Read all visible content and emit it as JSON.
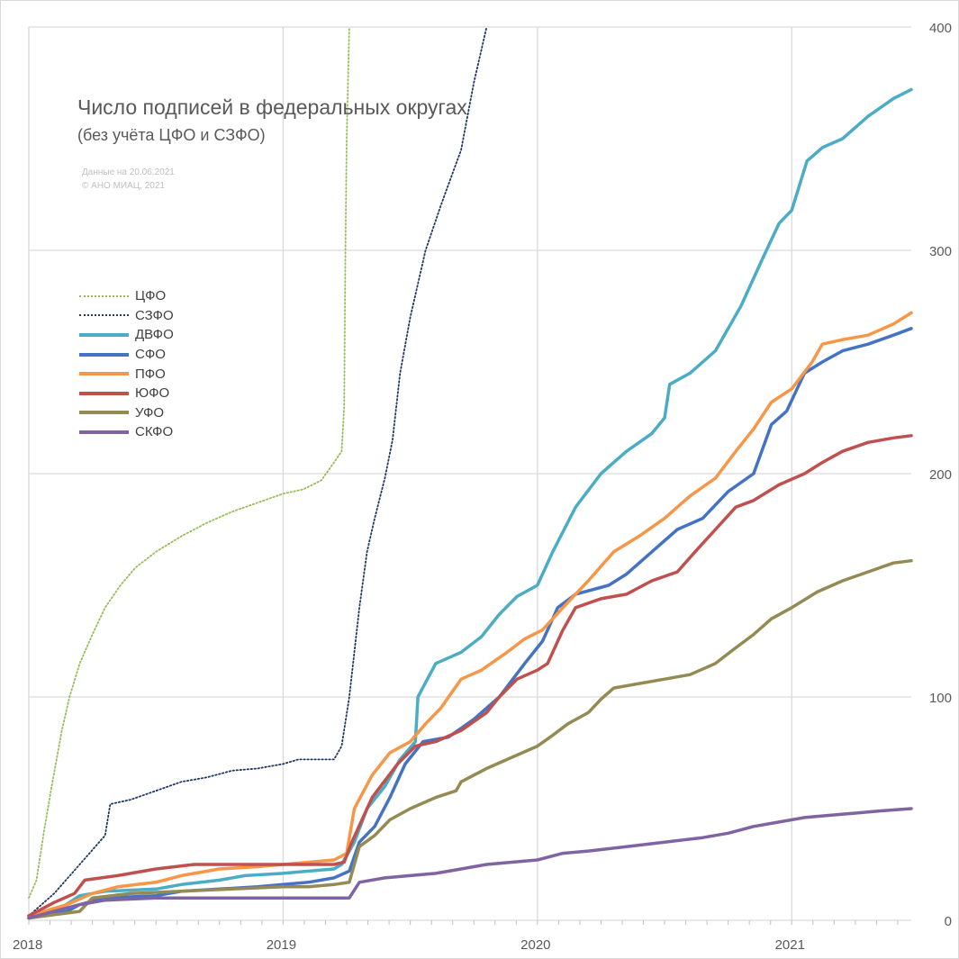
{
  "header": {
    "title": "Число подписей в федеральных округах",
    "subtitle": "(без учёта ЦФО и СЗФО)",
    "note_date": "Данные на 20.06.2021",
    "note_copyright": "© АНО МИАЦ, 2021"
  },
  "chart_data": {
    "type": "line",
    "title": "Число подписей в федеральных округах",
    "subtitle": "(без учёта ЦФО и СЗФО)",
    "xlabel": "",
    "ylabel": "",
    "x_ticks": [
      "2018",
      "2019",
      "2020",
      "2021"
    ],
    "x_tick_values": [
      2018,
      2019,
      2020,
      2021
    ],
    "xlim": [
      2018,
      2021.47
    ],
    "y_ticks": [
      0,
      100,
      200,
      300,
      400
    ],
    "ylim": [
      0,
      400
    ],
    "y_axis_side": "right",
    "grid": true,
    "legend_position": "left",
    "series": [
      {
        "name": "ЦФО",
        "color": "#9bbb59",
        "style": "dotted",
        "points": [
          [
            2018.0,
            10
          ],
          [
            2018.03,
            18
          ],
          [
            2018.06,
            40
          ],
          [
            2018.09,
            60
          ],
          [
            2018.13,
            85
          ],
          [
            2018.16,
            100
          ],
          [
            2018.2,
            115
          ],
          [
            2018.25,
            128
          ],
          [
            2018.3,
            140
          ],
          [
            2018.36,
            150
          ],
          [
            2018.42,
            158
          ],
          [
            2018.5,
            165
          ],
          [
            2018.6,
            172
          ],
          [
            2018.7,
            178
          ],
          [
            2018.8,
            183
          ],
          [
            2018.9,
            187
          ],
          [
            2019.0,
            191
          ],
          [
            2019.08,
            193
          ],
          [
            2019.15,
            197
          ],
          [
            2019.2,
            205
          ],
          [
            2019.23,
            210
          ],
          [
            2019.24,
            230
          ],
          [
            2019.245,
            300
          ],
          [
            2019.25,
            350
          ],
          [
            2019.26,
            400
          ]
        ]
      },
      {
        "name": "СЗФО",
        "color": "#1f3864",
        "style": "dotted",
        "points": [
          [
            2018.0,
            2
          ],
          [
            2018.1,
            12
          ],
          [
            2018.2,
            25
          ],
          [
            2018.3,
            38
          ],
          [
            2018.32,
            52
          ],
          [
            2018.4,
            54
          ],
          [
            2018.5,
            58
          ],
          [
            2018.6,
            62
          ],
          [
            2018.7,
            64
          ],
          [
            2018.8,
            67
          ],
          [
            2018.9,
            68
          ],
          [
            2019.0,
            70
          ],
          [
            2019.06,
            72
          ],
          [
            2019.1,
            72
          ],
          [
            2019.2,
            72
          ],
          [
            2019.23,
            78
          ],
          [
            2019.26,
            100
          ],
          [
            2019.3,
            140
          ],
          [
            2019.33,
            165
          ],
          [
            2019.36,
            180
          ],
          [
            2019.4,
            198
          ],
          [
            2019.43,
            215
          ],
          [
            2019.46,
            245
          ],
          [
            2019.5,
            270
          ],
          [
            2019.56,
            300
          ],
          [
            2019.62,
            320
          ],
          [
            2019.7,
            345
          ],
          [
            2019.75,
            375
          ],
          [
            2019.8,
            400
          ]
        ]
      },
      {
        "name": "ДВФО",
        "color": "#4bacc6",
        "style": "solid",
        "points": [
          [
            2018.0,
            2
          ],
          [
            2018.12,
            5
          ],
          [
            2018.2,
            11
          ],
          [
            2018.3,
            13
          ],
          [
            2018.5,
            14
          ],
          [
            2018.6,
            16
          ],
          [
            2018.75,
            18
          ],
          [
            2018.85,
            20
          ],
          [
            2019.0,
            21
          ],
          [
            2019.1,
            22
          ],
          [
            2019.2,
            23
          ],
          [
            2019.23,
            25
          ],
          [
            2019.28,
            35
          ],
          [
            2019.33,
            50
          ],
          [
            2019.4,
            60
          ],
          [
            2019.46,
            72
          ],
          [
            2019.52,
            80
          ],
          [
            2019.53,
            100
          ],
          [
            2019.6,
            115
          ],
          [
            2019.7,
            120
          ],
          [
            2019.78,
            127
          ],
          [
            2019.85,
            137
          ],
          [
            2019.92,
            145
          ],
          [
            2020.0,
            150
          ],
          [
            2020.06,
            165
          ],
          [
            2020.15,
            185
          ],
          [
            2020.25,
            200
          ],
          [
            2020.35,
            210
          ],
          [
            2020.45,
            218
          ],
          [
            2020.5,
            225
          ],
          [
            2020.52,
            240
          ],
          [
            2020.6,
            245
          ],
          [
            2020.7,
            255
          ],
          [
            2020.8,
            275
          ],
          [
            2020.88,
            295
          ],
          [
            2020.95,
            312
          ],
          [
            2021.0,
            318
          ],
          [
            2021.06,
            340
          ],
          [
            2021.12,
            346
          ],
          [
            2021.2,
            350
          ],
          [
            2021.3,
            360
          ],
          [
            2021.4,
            368
          ],
          [
            2021.47,
            372
          ]
        ]
      },
      {
        "name": "СФО",
        "color": "#4472c4",
        "style": "solid",
        "points": [
          [
            2018.0,
            1
          ],
          [
            2018.15,
            4
          ],
          [
            2018.2,
            7
          ],
          [
            2018.3,
            10
          ],
          [
            2018.5,
            11
          ],
          [
            2018.6,
            13
          ],
          [
            2018.75,
            14
          ],
          [
            2018.9,
            15
          ],
          [
            2019.0,
            16
          ],
          [
            2019.1,
            17
          ],
          [
            2019.2,
            19
          ],
          [
            2019.26,
            22
          ],
          [
            2019.3,
            35
          ],
          [
            2019.36,
            42
          ],
          [
            2019.42,
            55
          ],
          [
            2019.48,
            70
          ],
          [
            2019.55,
            80
          ],
          [
            2019.65,
            82
          ],
          [
            2019.75,
            90
          ],
          [
            2019.85,
            100
          ],
          [
            2019.95,
            115
          ],
          [
            2020.02,
            125
          ],
          [
            2020.08,
            140
          ],
          [
            2020.15,
            146
          ],
          [
            2020.28,
            150
          ],
          [
            2020.35,
            155
          ],
          [
            2020.45,
            165
          ],
          [
            2020.55,
            175
          ],
          [
            2020.65,
            180
          ],
          [
            2020.75,
            192
          ],
          [
            2020.85,
            200
          ],
          [
            2020.92,
            222
          ],
          [
            2020.98,
            228
          ],
          [
            2021.05,
            245
          ],
          [
            2021.12,
            250
          ],
          [
            2021.2,
            255
          ],
          [
            2021.3,
            258
          ],
          [
            2021.4,
            262
          ],
          [
            2021.47,
            265
          ]
        ]
      },
      {
        "name": "ПФО",
        "color": "#f79646",
        "style": "solid",
        "points": [
          [
            2018.0,
            2
          ],
          [
            2018.15,
            7
          ],
          [
            2018.25,
            12
          ],
          [
            2018.35,
            15
          ],
          [
            2018.5,
            17
          ],
          [
            2018.6,
            20
          ],
          [
            2018.75,
            23
          ],
          [
            2018.9,
            24
          ],
          [
            2019.0,
            25
          ],
          [
            2019.1,
            26
          ],
          [
            2019.2,
            27
          ],
          [
            2019.25,
            30
          ],
          [
            2019.28,
            50
          ],
          [
            2019.35,
            65
          ],
          [
            2019.42,
            75
          ],
          [
            2019.5,
            80
          ],
          [
            2019.56,
            88
          ],
          [
            2019.62,
            95
          ],
          [
            2019.7,
            108
          ],
          [
            2019.78,
            112
          ],
          [
            2019.88,
            120
          ],
          [
            2019.95,
            126
          ],
          [
            2020.02,
            130
          ],
          [
            2020.1,
            140
          ],
          [
            2020.2,
            152
          ],
          [
            2020.3,
            165
          ],
          [
            2020.4,
            172
          ],
          [
            2020.5,
            180
          ],
          [
            2020.6,
            190
          ],
          [
            2020.7,
            198
          ],
          [
            2020.78,
            210
          ],
          [
            2020.85,
            220
          ],
          [
            2020.92,
            232
          ],
          [
            2021.0,
            238
          ],
          [
            2021.08,
            250
          ],
          [
            2021.12,
            258
          ],
          [
            2021.2,
            260
          ],
          [
            2021.3,
            262
          ],
          [
            2021.4,
            267
          ],
          [
            2021.47,
            272
          ]
        ]
      },
      {
        "name": "ЮФО",
        "color": "#c0504d",
        "style": "solid",
        "points": [
          [
            2018.0,
            2
          ],
          [
            2018.1,
            8
          ],
          [
            2018.18,
            12
          ],
          [
            2018.22,
            18
          ],
          [
            2018.35,
            20
          ],
          [
            2018.5,
            23
          ],
          [
            2018.65,
            25
          ],
          [
            2018.8,
            25
          ],
          [
            2019.0,
            25
          ],
          [
            2019.1,
            25
          ],
          [
            2019.2,
            25
          ],
          [
            2019.24,
            26
          ],
          [
            2019.27,
            35
          ],
          [
            2019.35,
            55
          ],
          [
            2019.45,
            70
          ],
          [
            2019.52,
            78
          ],
          [
            2019.6,
            80
          ],
          [
            2019.7,
            85
          ],
          [
            2019.8,
            93
          ],
          [
            2019.85,
            100
          ],
          [
            2019.92,
            108
          ],
          [
            2020.0,
            112
          ],
          [
            2020.04,
            115
          ],
          [
            2020.1,
            130
          ],
          [
            2020.15,
            140
          ],
          [
            2020.25,
            144
          ],
          [
            2020.35,
            146
          ],
          [
            2020.45,
            152
          ],
          [
            2020.55,
            156
          ],
          [
            2020.62,
            165
          ],
          [
            2020.7,
            175
          ],
          [
            2020.78,
            185
          ],
          [
            2020.85,
            188
          ],
          [
            2020.95,
            195
          ],
          [
            2021.05,
            200
          ],
          [
            2021.12,
            205
          ],
          [
            2021.2,
            210
          ],
          [
            2021.3,
            214
          ],
          [
            2021.4,
            216
          ],
          [
            2021.47,
            217
          ]
        ]
      },
      {
        "name": "УФО",
        "color": "#948a54",
        "style": "solid",
        "points": [
          [
            2018.0,
            1
          ],
          [
            2018.2,
            4
          ],
          [
            2018.25,
            10
          ],
          [
            2018.4,
            12
          ],
          [
            2018.6,
            13
          ],
          [
            2018.8,
            14
          ],
          [
            2019.0,
            15
          ],
          [
            2019.1,
            15
          ],
          [
            2019.2,
            16
          ],
          [
            2019.26,
            17
          ],
          [
            2019.3,
            33
          ],
          [
            2019.36,
            38
          ],
          [
            2019.42,
            45
          ],
          [
            2019.5,
            50
          ],
          [
            2019.6,
            55
          ],
          [
            2019.68,
            58
          ],
          [
            2019.7,
            62
          ],
          [
            2019.8,
            68
          ],
          [
            2019.9,
            73
          ],
          [
            2020.0,
            78
          ],
          [
            2020.05,
            82
          ],
          [
            2020.12,
            88
          ],
          [
            2020.2,
            93
          ],
          [
            2020.25,
            99
          ],
          [
            2020.3,
            104
          ],
          [
            2020.4,
            106
          ],
          [
            2020.5,
            108
          ],
          [
            2020.6,
            110
          ],
          [
            2020.7,
            115
          ],
          [
            2020.78,
            122
          ],
          [
            2020.85,
            128
          ],
          [
            2020.92,
            135
          ],
          [
            2021.0,
            140
          ],
          [
            2021.1,
            147
          ],
          [
            2021.2,
            152
          ],
          [
            2021.3,
            156
          ],
          [
            2021.4,
            160
          ],
          [
            2021.47,
            161
          ]
        ]
      },
      {
        "name": "СКФО",
        "color": "#8064a2",
        "style": "solid",
        "points": [
          [
            2018.0,
            1
          ],
          [
            2018.2,
            7
          ],
          [
            2018.3,
            9
          ],
          [
            2018.5,
            10
          ],
          [
            2018.7,
            10
          ],
          [
            2018.9,
            10
          ],
          [
            2019.0,
            10
          ],
          [
            2019.1,
            10
          ],
          [
            2019.2,
            10
          ],
          [
            2019.26,
            10
          ],
          [
            2019.3,
            17
          ],
          [
            2019.4,
            19
          ],
          [
            2019.5,
            20
          ],
          [
            2019.6,
            21
          ],
          [
            2019.7,
            23
          ],
          [
            2019.8,
            25
          ],
          [
            2019.9,
            26
          ],
          [
            2020.0,
            27
          ],
          [
            2020.1,
            30
          ],
          [
            2020.2,
            31
          ],
          [
            2020.35,
            33
          ],
          [
            2020.5,
            35
          ],
          [
            2020.65,
            37
          ],
          [
            2020.75,
            39
          ],
          [
            2020.85,
            42
          ],
          [
            2020.95,
            44
          ],
          [
            2021.05,
            46
          ],
          [
            2021.15,
            47
          ],
          [
            2021.25,
            48
          ],
          [
            2021.35,
            49
          ],
          [
            2021.47,
            50
          ]
        ]
      }
    ]
  }
}
